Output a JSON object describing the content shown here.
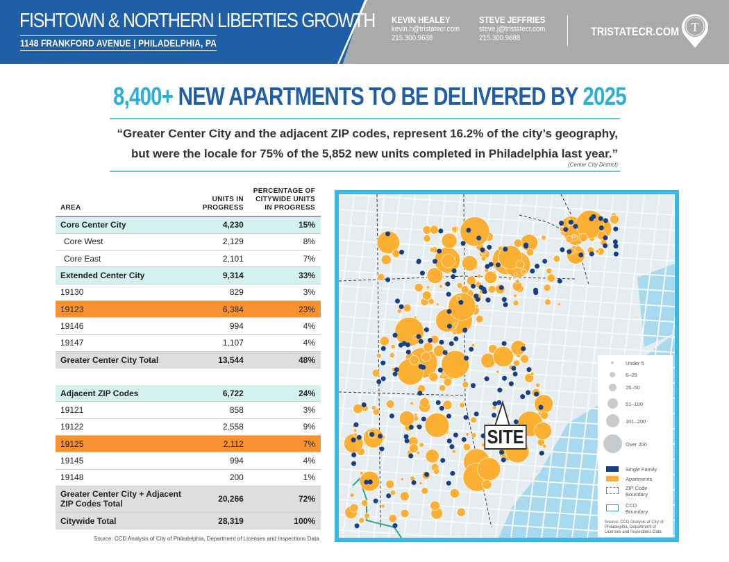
{
  "header": {
    "title": "FISHTOWN & NORTHERN LIBERTIES GROWTH",
    "address": "1148 FRANKFORD AVENUE | PHILADELPHIA, PA",
    "contacts": [
      {
        "name": "KEVIN HEALEY",
        "email": "kevin.h@tristatecr.com",
        "phone": "215.300.9688"
      },
      {
        "name": "STEVE JEFFRIES",
        "email": "steve.j@tristatecr.com",
        "phone": "215.300.9688"
      }
    ],
    "website": "TRISTATECR.COM",
    "logo_letter": "T"
  },
  "headline": {
    "count": "8,400+",
    "middle": "NEW APARTMENTS TO BE DELIVERED BY",
    "year": "2025"
  },
  "quote": {
    "line1": "“Greater Center City and the adjacent ZIP codes, represent 16.2% of the city’s geography,",
    "line2": "but were the locale for 75% of the 5,852 new units completed in Philadelphia last year.”",
    "attribution": "(Center City District)"
  },
  "table": {
    "headers": [
      "AREA",
      "UNITS IN PROGRESS",
      "PERCENTAGE OF CITYWIDE UNITS IN PROGRESS"
    ],
    "rows": [
      {
        "area": "Core Center City",
        "units": "4,230",
        "pct": "15%",
        "style": "teal"
      },
      {
        "area": "Core West",
        "units": "2,129",
        "pct": "8%",
        "style": "sub"
      },
      {
        "area": "Core East",
        "units": "2,101",
        "pct": "7%",
        "style": "sub"
      },
      {
        "area": "Extended Center City",
        "units": "9,314",
        "pct": "33%",
        "style": "teal"
      },
      {
        "area": "19130",
        "units": "829",
        "pct": "3%",
        "style": ""
      },
      {
        "area": "19123",
        "units": "6,384",
        "pct": "23%",
        "style": "orange"
      },
      {
        "area": "19146",
        "units": "994",
        "pct": "4%",
        "style": ""
      },
      {
        "area": "19147",
        "units": "1,107",
        "pct": "4%",
        "style": ""
      },
      {
        "area": "Greater Center City Total",
        "units": "13,544",
        "pct": "48%",
        "style": "grey"
      },
      {
        "area": "",
        "units": "",
        "pct": "",
        "style": "gap"
      },
      {
        "area": "Adjacent ZIP Codes",
        "units": "6,722",
        "pct": "24%",
        "style": "teal"
      },
      {
        "area": "19121",
        "units": "858",
        "pct": "3%",
        "style": ""
      },
      {
        "area": "19122",
        "units": "2,558",
        "pct": "9%",
        "style": ""
      },
      {
        "area": "19125",
        "units": "2,112",
        "pct": "7%",
        "style": "orange"
      },
      {
        "area": "19145",
        "units": "994",
        "pct": "4%",
        "style": ""
      },
      {
        "area": "19148",
        "units": "200",
        "pct": "1%",
        "style": ""
      },
      {
        "area": "Greater Center City + Adjacent ZIP Codes Total",
        "units": "20,266",
        "pct": "72%",
        "style": "grey two"
      },
      {
        "area": "Citywide Total",
        "units": "28,319",
        "pct": "100%",
        "style": "grey"
      }
    ],
    "source": "Source: CCD Analysis of City of Philadelphia, Department of Licenses and Inspections Data"
  },
  "map": {
    "site_label": "SITE",
    "legend": {
      "sizes": [
        "Under 5",
        "6–25",
        "26–50",
        "51–100",
        "101–200",
        "Over 200"
      ],
      "single_family": "Single Family",
      "apartments": "Apartments",
      "zip_boundary": "ZIP Code Boundary",
      "ccd_boundary": "CCD Boundary",
      "source": "Source: CCD Analysis of City of Philadelphia, Department of Licenses and Inspections Data"
    },
    "colors": {
      "single_family": "#163f86",
      "apartments": "#fbb034",
      "water": "#a9d9ef",
      "border": "#3ab7e6"
    }
  },
  "colors": {
    "blue": "#1f5fa8",
    "cyan": "#2ab0d8",
    "orange": "#f7922e",
    "teal": "#d3f1ee"
  }
}
